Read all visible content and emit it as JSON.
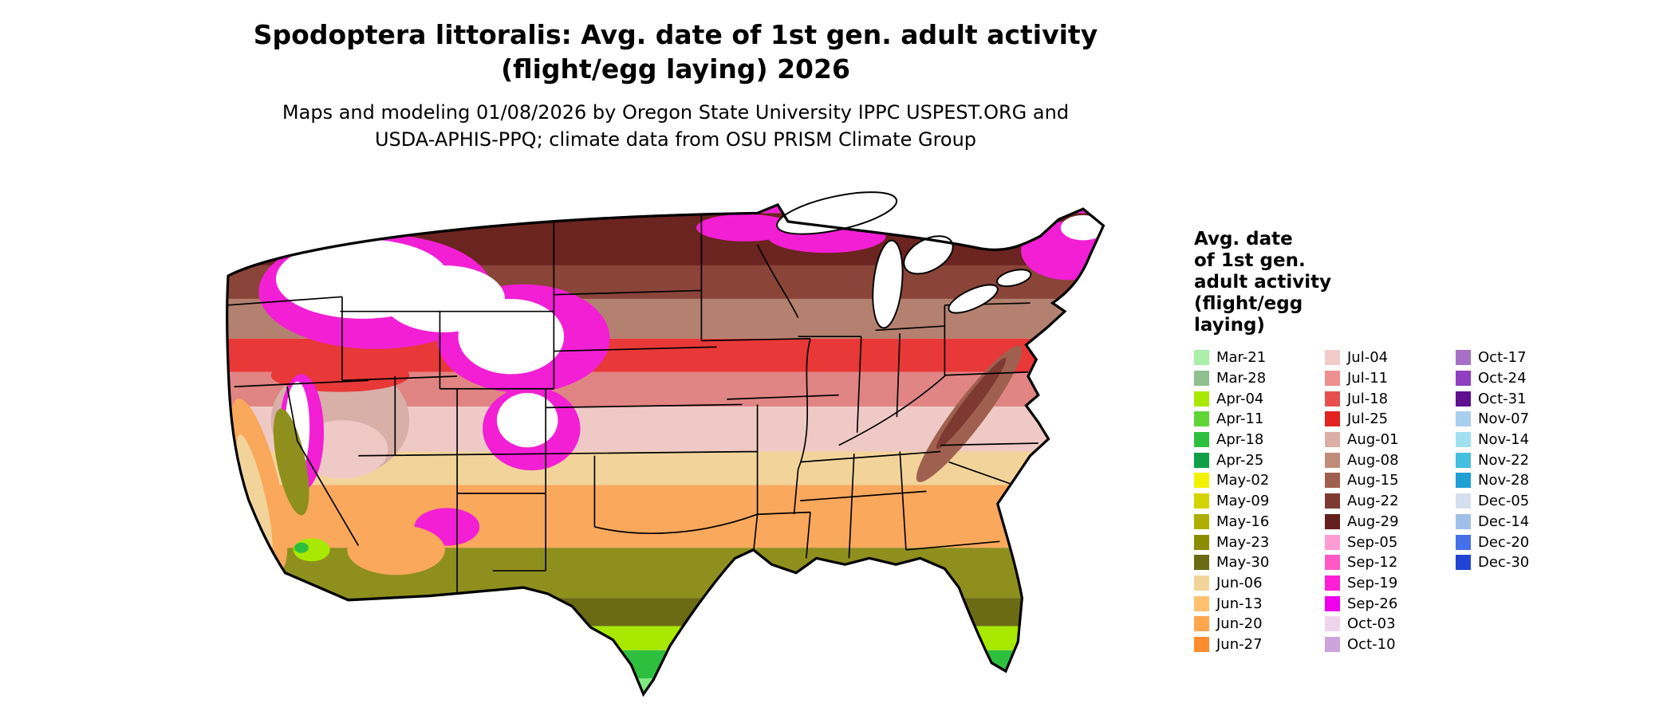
{
  "header": {
    "title_line1": "Spodoptera littoralis: Avg. date of 1st gen. adult activity",
    "title_line2": "(flight/egg laying) 2026",
    "subtitle_line1": "Maps and modeling 01/08/2026 by Oregon State University IPPC USPEST.ORG and",
    "subtitle_line2": "USDA-APHIS-PPQ; climate data from OSU PRISM Climate Group"
  },
  "legend": {
    "title_lines": [
      "Avg. date",
      "of 1st gen.",
      "adult activity",
      "(flight/egg",
      "laying)"
    ],
    "columns": [
      {
        "items": [
          {
            "label": "Mar-21",
            "color": "#A9EFA9"
          },
          {
            "label": "Mar-28",
            "color": "#8FBF8F"
          },
          {
            "label": "Apr-04",
            "color": "#A9E800"
          },
          {
            "label": "Apr-11",
            "color": "#5FD437"
          },
          {
            "label": "Apr-18",
            "color": "#2FBF3F"
          },
          {
            "label": "Apr-25",
            "color": "#0F9F47"
          },
          {
            "label": "May-02",
            "color": "#F2F200"
          },
          {
            "label": "May-09",
            "color": "#D4D400"
          },
          {
            "label": "May-16",
            "color": "#AFAF00"
          },
          {
            "label": "May-23",
            "color": "#8C8C00"
          },
          {
            "label": "May-30",
            "color": "#6B6B14"
          },
          {
            "label": "Jun-06",
            "color": "#F2D49B"
          },
          {
            "label": "Jun-13",
            "color": "#FFC170"
          },
          {
            "label": "Jun-20",
            "color": "#FFA64D"
          },
          {
            "label": "Jun-27",
            "color": "#FF8C2E"
          }
        ]
      },
      {
        "items": [
          {
            "label": "Jul-04",
            "color": "#F2CCC9"
          },
          {
            "label": "Jul-11",
            "color": "#EE9090"
          },
          {
            "label": "Jul-18",
            "color": "#E85050"
          },
          {
            "label": "Jul-25",
            "color": "#E32222"
          },
          {
            "label": "Aug-01",
            "color": "#DBAFA7"
          },
          {
            "label": "Aug-08",
            "color": "#C08C7A"
          },
          {
            "label": "Aug-15",
            "color": "#A06050"
          },
          {
            "label": "Aug-22",
            "color": "#7E3A32"
          },
          {
            "label": "Aug-29",
            "color": "#641E1E"
          },
          {
            "label": "Sep-05",
            "color": "#FF9BD4"
          },
          {
            "label": "Sep-12",
            "color": "#FF59C6"
          },
          {
            "label": "Sep-19",
            "color": "#FF1FD4"
          },
          {
            "label": "Sep-26",
            "color": "#EE00EE"
          },
          {
            "label": "Oct-03",
            "color": "#F0D4EE"
          },
          {
            "label": "Oct-10",
            "color": "#CDA3DC"
          }
        ]
      },
      {
        "items": [
          {
            "label": "Oct-17",
            "color": "#A86FC9"
          },
          {
            "label": "Oct-24",
            "color": "#8F3FBF"
          },
          {
            "label": "Oct-31",
            "color": "#5F0F8F"
          },
          {
            "label": "Nov-07",
            "color": "#A9CFEF"
          },
          {
            "label": "Nov-14",
            "color": "#A0E0F0"
          },
          {
            "label": "Nov-22",
            "color": "#45BFDF"
          },
          {
            "label": "Nov-28",
            "color": "#1F9FD4"
          },
          {
            "label": "Dec-05",
            "color": "#D4E0EF"
          },
          {
            "label": "Dec-14",
            "color": "#A0BFE8"
          },
          {
            "label": "Dec-20",
            "color": "#4570E8"
          },
          {
            "label": "Dec-30",
            "color": "#2045D4"
          }
        ]
      }
    ]
  },
  "map": {
    "background": "#FFFFFF",
    "border_color": "#000000",
    "bands": [
      {
        "color": "#F21FD4"
      },
      {
        "color": "#6B2420"
      },
      {
        "color": "#8A4438"
      },
      {
        "color": "#B48070"
      },
      {
        "color": "#E83838"
      },
      {
        "color": "#E08484"
      },
      {
        "color": "#EFC9C5"
      },
      {
        "color": "#F2D49B"
      },
      {
        "color": "#F9A85C"
      },
      {
        "color": "#8F8F1E"
      },
      {
        "color": "#6B6B14"
      },
      {
        "color": "#A9E800"
      },
      {
        "color": "#2FBF3F"
      },
      {
        "color": "#7FE87F"
      }
    ],
    "patch_colors": {
      "white": "#FFFFFF",
      "magenta": "#F21FD4",
      "mauve": "#D8B0A8",
      "pale_pink": "#EFC9C5",
      "red": "#E83838",
      "orange": "#F9A85C",
      "tan": "#F2D49B",
      "olive": "#8F8F1E",
      "yellow_green": "#A9E800",
      "green": "#2FBF3F",
      "brown": "#A06050",
      "dark_brown": "#7E3A32"
    }
  }
}
